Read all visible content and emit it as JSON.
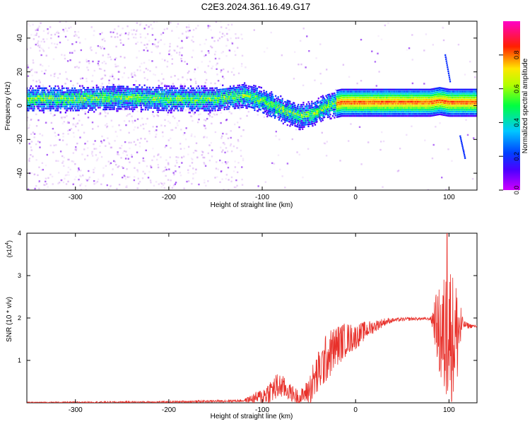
{
  "title": "C2E3.2024.361.16.49.G17",
  "chart_data": [
    {
      "type": "heatmap",
      "xlabel": "Height of straight line (km)",
      "ylabel": "Frequency (Hz)",
      "xlim": [
        -352,
        130
      ],
      "ylim": [
        -50,
        50
      ],
      "xticks": [
        -300,
        -200,
        -100,
        0,
        100
      ],
      "xtick_labels": [
        "-300",
        "-200",
        "-100",
        "0",
        "100"
      ],
      "yticks": [
        -40,
        -20,
        0,
        20,
        40
      ],
      "ytick_labels": [
        "-40",
        "-20",
        "0",
        "20",
        "40"
      ],
      "colorbar": {
        "label": "Normalized spectral amplitude",
        "range": [
          0,
          1
        ],
        "ticks": [
          0,
          0.2,
          0.4,
          0.6,
          0.8
        ],
        "tick_labels": [
          "0.0",
          "0.2",
          "0.4",
          "0.6",
          "0.8"
        ],
        "colormap": "rainbow (magenta-blue-cyan-green-yellow-red-magenta)"
      },
      "ridge": {
        "x": [
          -340,
          -300,
          -250,
          -200,
          -150,
          -120,
          -100,
          -80,
          -60,
          -45,
          -30,
          -15,
          0,
          20,
          40,
          60,
          80,
          90,
          100,
          110,
          130
        ],
        "y": [
          4,
          4,
          5,
          4,
          4,
          6,
          3,
          -2,
          -6,
          -5,
          0,
          2,
          2,
          2,
          2,
          2,
          2,
          3,
          2,
          2,
          2
        ]
      },
      "grid": false
    },
    {
      "type": "line",
      "xlabel": "Height of straight line (km)",
      "ylabel": "SNR (10 * v/v)",
      "y_multiplier": "(x10",
      "y_multiplier_exp": "4",
      "y_multiplier_close": ")",
      "xlim": [
        -352,
        130
      ],
      "ylim": [
        0,
        4
      ],
      "xticks": [
        -300,
        -200,
        -100,
        0,
        100
      ],
      "xtick_labels": [
        "-300",
        "-200",
        "-100",
        "0",
        "100"
      ],
      "yticks": [
        1,
        2,
        3,
        4
      ],
      "ytick_labels": [
        "1",
        "2",
        "3",
        "4"
      ],
      "series_color": "#e8302a",
      "envelope": {
        "x": [
          -352,
          -200,
          -120,
          -100,
          -90,
          -80,
          -70,
          -60,
          -50,
          -40,
          -30,
          -20,
          -10,
          0,
          10,
          20,
          30,
          40,
          60,
          80,
          85,
          90,
          95,
          100,
          105,
          110,
          115,
          120,
          130
        ],
        "y": [
          0.01,
          0.02,
          0.05,
          0.15,
          0.3,
          0.4,
          0.25,
          0.1,
          0.3,
          0.7,
          1.1,
          1.35,
          1.5,
          1.55,
          1.7,
          1.8,
          1.9,
          1.95,
          1.98,
          1.98,
          1.95,
          1.6,
          1.5,
          1.8,
          1.5,
          1.7,
          1.85,
          1.82,
          1.8
        ]
      },
      "noise_amplitude": {
        "x": [
          -352,
          -120,
          -100,
          -85,
          -70,
          -55,
          -45,
          -30,
          -10,
          0,
          20,
          40,
          80,
          88,
          92,
          100,
          110,
          115,
          130
        ],
        "y": [
          0.01,
          0.03,
          0.2,
          0.35,
          0.2,
          0.2,
          0.5,
          0.6,
          0.4,
          0.3,
          0.15,
          0.05,
          0.03,
          0.9,
          1.4,
          1.8,
          1.2,
          0.1,
          0.02
        ]
      },
      "peak": {
        "x": 98,
        "y": 4.0
      },
      "grid": false
    }
  ]
}
